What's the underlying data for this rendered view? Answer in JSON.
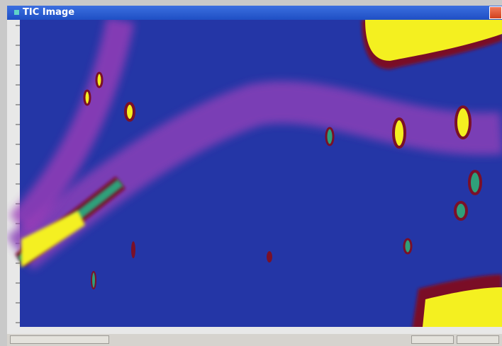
{
  "window": {
    "title": "TIC Image"
  }
}
